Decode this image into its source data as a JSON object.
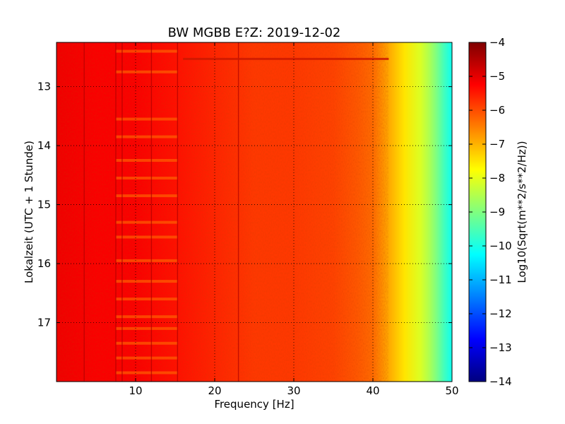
{
  "chart_data": {
    "type": "heatmap",
    "title": "BW MGBB E?Z: 2019-12-02",
    "xlabel": "Frequency [Hz]",
    "ylabel": "Lokalzeit (UTC + 1 Stunde)",
    "xlim": [
      0,
      50
    ],
    "ylim": [
      12.25,
      18.0
    ],
    "y_inverted": true,
    "x_ticks": [
      10,
      20,
      30,
      40,
      50
    ],
    "x_tick_labels": [
      "10",
      "20",
      "30",
      "40",
      "50"
    ],
    "y_ticks": [
      13,
      14,
      15,
      16,
      17
    ],
    "y_tick_labels": [
      "13",
      "14",
      "15",
      "16",
      "17"
    ],
    "grid": true,
    "colormap": "jet",
    "colorbar": {
      "label": "Log10(Sqrt(m**2/s**2/Hz))",
      "range": [
        -14,
        -4
      ],
      "ticks": [
        -4,
        -5,
        -6,
        -7,
        -8,
        -9,
        -10,
        -11,
        -12,
        -13,
        -14
      ],
      "tick_labels": [
        "−4",
        "−5",
        "−6",
        "−7",
        "−8",
        "−9",
        "−10",
        "−11",
        "−12",
        "−13",
        "−14"
      ]
    },
    "spectrum_profile": {
      "frequency_hz": [
        0,
        5,
        10,
        15,
        20,
        25,
        30,
        35,
        38,
        40,
        42,
        44,
        46,
        47,
        48,
        49,
        50
      ],
      "log10_amplitude": [
        -5.1,
        -5.2,
        -5.2,
        -5.4,
        -5.6,
        -5.8,
        -5.8,
        -5.9,
        -6.1,
        -6.3,
        -6.9,
        -7.5,
        -8.1,
        -8.5,
        -9.0,
        -9.6,
        -10.1
      ]
    },
    "vertical_lines_hz": [
      3.5,
      7.5,
      8.3,
      12.0,
      15.3,
      23.0
    ],
    "horizontal_bands_hour": [
      12.4,
      12.75,
      13.55,
      13.85,
      14.25,
      14.55,
      14.85,
      15.3,
      15.55,
      15.95,
      16.3,
      16.6,
      16.9,
      17.1,
      17.35,
      17.6,
      17.85
    ],
    "highlight_line": {
      "hour": 12.53,
      "x_from_hz": 16,
      "x_to_hz": 42
    }
  }
}
